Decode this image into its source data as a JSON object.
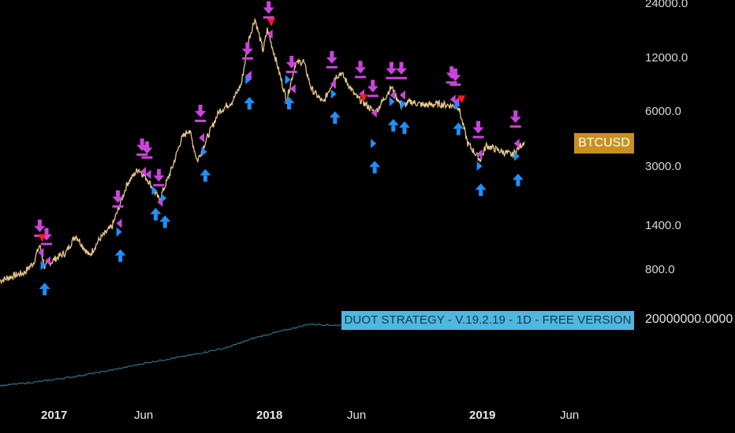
{
  "chart_data": {
    "type": "line",
    "symbol": "BTCUSD",
    "scale": "log",
    "ylim": [
      600,
      24000
    ],
    "y_ticks": [
      "24000.0",
      "12000.0",
      "6000.0",
      "3000.0",
      "1400.0",
      "800.0"
    ],
    "x_ticks": [
      {
        "label": "2017",
        "bold": true
      },
      {
        "label": "Jun",
        "bold": false
      },
      {
        "label": "2018",
        "bold": true
      },
      {
        "label": "Jun",
        "bold": false
      },
      {
        "label": "2019",
        "bold": true
      },
      {
        "label": "Jun",
        "bold": false
      }
    ],
    "x_range": [
      "2016-11-01",
      "2019-08-15"
    ],
    "grid": false,
    "colors": {
      "background": "#000000",
      "price": "#e8c98a",
      "equity": "#2c6f8a",
      "sell_arrow": "#cc44dd",
      "buy_arrow": "#1e90ff",
      "red_marker": "#ff1a1a"
    },
    "series": [
      {
        "values": [
          [
            "2016-11-01",
            700
          ],
          [
            "2016-11-20",
            740
          ],
          [
            "2016-12-10",
            775
          ],
          [
            "2016-12-25",
            880
          ],
          [
            "2017-01-04",
            1100
          ],
          [
            "2017-01-12",
            830
          ],
          [
            "2017-01-28",
            920
          ],
          [
            "2017-02-15",
            1000
          ],
          [
            "2017-03-03",
            1250
          ],
          [
            "2017-03-25",
            960
          ],
          [
            "2017-04-10",
            1180
          ],
          [
            "2017-05-01",
            1400
          ],
          [
            "2017-05-25",
            2400
          ],
          [
            "2017-06-12",
            2900
          ],
          [
            "2017-06-28",
            2500
          ],
          [
            "2017-07-16",
            1950
          ],
          [
            "2017-08-05",
            2900
          ],
          [
            "2017-08-20",
            4200
          ],
          [
            "2017-09-02",
            4800
          ],
          [
            "2017-09-15",
            3200
          ],
          [
            "2017-10-01",
            4300
          ],
          [
            "2017-10-20",
            6000
          ],
          [
            "2017-11-10",
            6800
          ],
          [
            "2017-11-25",
            8500
          ],
          [
            "2017-12-07",
            15000
          ],
          [
            "2017-12-17",
            19500
          ],
          [
            "2017-12-30",
            13000
          ],
          [
            "2018-01-06",
            17000
          ],
          [
            "2018-01-20",
            11500
          ],
          [
            "2018-02-06",
            6900
          ],
          [
            "2018-02-20",
            11000
          ],
          [
            "2018-03-05",
            11400
          ],
          [
            "2018-03-18",
            8000
          ],
          [
            "2018-04-06",
            6700
          ],
          [
            "2018-04-25",
            9300
          ],
          [
            "2018-05-05",
            9800
          ],
          [
            "2018-05-28",
            7300
          ],
          [
            "2018-06-15",
            6500
          ],
          [
            "2018-06-29",
            5900
          ],
          [
            "2018-07-25",
            8200
          ],
          [
            "2018-08-10",
            6400
          ],
          [
            "2018-08-25",
            6800
          ],
          [
            "2018-09-15",
            6500
          ],
          [
            "2018-10-10",
            6600
          ],
          [
            "2018-11-10",
            6400
          ],
          [
            "2018-11-25",
            4000
          ],
          [
            "2018-12-15",
            3250
          ],
          [
            "2018-12-25",
            3900
          ],
          [
            "2019-01-10",
            3700
          ],
          [
            "2019-02-05",
            3450
          ],
          [
            "2019-02-24",
            4100
          ]
        ]
      },
      {
        "values": [
          [
            "2016-11-01",
            1.0
          ],
          [
            "2017-01-01",
            1.15
          ],
          [
            "2017-03-01",
            1.35
          ],
          [
            "2017-05-01",
            1.6
          ],
          [
            "2017-07-01",
            1.9
          ],
          [
            "2017-09-01",
            2.15
          ],
          [
            "2017-11-01",
            2.45
          ],
          [
            "2017-12-20",
            2.85
          ],
          [
            "2018-02-01",
            3.1
          ],
          [
            "2018-03-15",
            3.35
          ],
          [
            "2018-05-01",
            3.3
          ],
          [
            "2018-06-01",
            3.45
          ],
          [
            "2018-06-20",
            3.55
          ]
        ]
      }
    ],
    "strategy_label": "DUOT STRATEGY - V.19.2.19 - 1D - FREE VERSION",
    "equity_value": "20000000.0000",
    "signals": [
      {
        "date": "2017-01-04",
        "price": 1000,
        "type": "sell"
      },
      {
        "date": "2017-01-12",
        "price": 850,
        "type": "buy"
      },
      {
        "date": "2017-01-15",
        "price": 900,
        "type": "sell"
      },
      {
        "date": "2017-05-10",
        "price": 1450,
        "type": "sell"
      },
      {
        "date": "2017-05-14",
        "price": 1300,
        "type": "buy"
      },
      {
        "date": "2017-06-18",
        "price": 2800,
        "type": "sell"
      },
      {
        "date": "2017-06-26",
        "price": 2700,
        "type": "sell"
      },
      {
        "date": "2017-07-10",
        "price": 2200,
        "type": "buy"
      },
      {
        "date": "2017-07-15",
        "price": 1900,
        "type": "sell"
      },
      {
        "date": "2017-07-25",
        "price": 2000,
        "type": "buy"
      },
      {
        "date": "2017-09-20",
        "price": 4300,
        "type": "sell"
      },
      {
        "date": "2017-09-28",
        "price": 3600,
        "type": "buy"
      },
      {
        "date": "2017-12-05",
        "price": 9500,
        "type": "sell"
      },
      {
        "date": "2017-12-08",
        "price": 9000,
        "type": "buy"
      },
      {
        "date": "2018-01-08",
        "price": 16000,
        "type": "sell"
      },
      {
        "date": "2018-02-10",
        "price": 9000,
        "type": "buy"
      },
      {
        "date": "2018-02-14",
        "price": 8000,
        "type": "sell"
      },
      {
        "date": "2018-04-20",
        "price": 8500,
        "type": "sell"
      },
      {
        "date": "2018-04-25",
        "price": 7500,
        "type": "buy"
      },
      {
        "date": "2018-06-05",
        "price": 7500,
        "type": "sell"
      },
      {
        "date": "2018-06-25",
        "price": 5900,
        "type": "sell"
      },
      {
        "date": "2018-06-28",
        "price": 4000,
        "type": "buy"
      },
      {
        "date": "2018-07-25",
        "price": 7400,
        "type": "sell"
      },
      {
        "date": "2018-07-28",
        "price": 6800,
        "type": "buy"
      },
      {
        "date": "2018-08-10",
        "price": 7400,
        "type": "sell"
      },
      {
        "date": "2018-08-15",
        "price": 6600,
        "type": "buy"
      },
      {
        "date": "2018-10-30",
        "price": 7000,
        "type": "sell"
      },
      {
        "date": "2018-11-05",
        "price": 6800,
        "type": "sell"
      },
      {
        "date": "2018-11-10",
        "price": 6500,
        "type": "buy"
      },
      {
        "date": "2018-12-12",
        "price": 3500,
        "type": "sell"
      },
      {
        "date": "2018-12-16",
        "price": 3000,
        "type": "buy"
      },
      {
        "date": "2019-02-10",
        "price": 4000,
        "type": "sell"
      },
      {
        "date": "2019-02-14",
        "price": 3400,
        "type": "buy"
      }
    ]
  }
}
